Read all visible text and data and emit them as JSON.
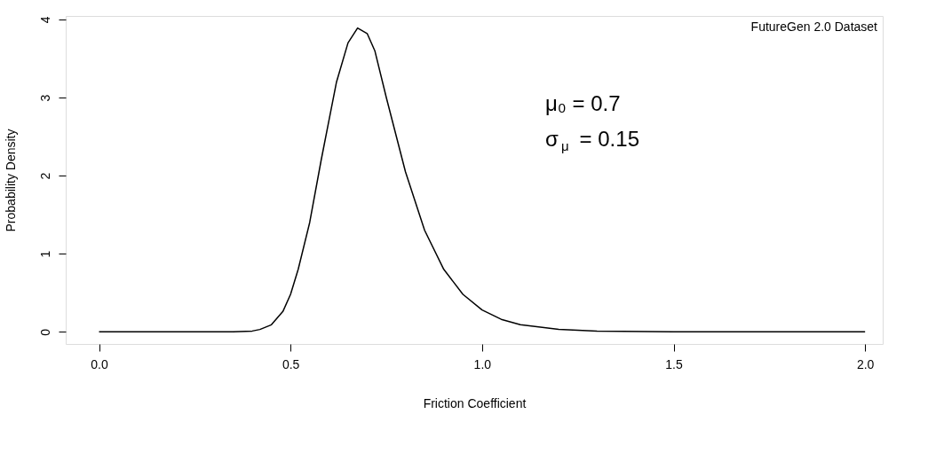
{
  "chart_data": {
    "type": "line",
    "xlabel": "Friction Coefficient",
    "ylabel": "Probability Density",
    "x": [
      0.0,
      0.2,
      0.35,
      0.4,
      0.42,
      0.45,
      0.48,
      0.5,
      0.52,
      0.55,
      0.58,
      0.6,
      0.62,
      0.65,
      0.675,
      0.7,
      0.72,
      0.75,
      0.8,
      0.85,
      0.9,
      0.95,
      1.0,
      1.05,
      1.1,
      1.2,
      1.3,
      1.5,
      2.0
    ],
    "series": [
      {
        "color": "#000000",
        "values": [
          0,
          0,
          0,
          0.01,
          0.03,
          0.09,
          0.26,
          0.48,
          0.8,
          1.4,
          2.2,
          2.7,
          3.2,
          3.7,
          3.89,
          3.82,
          3.6,
          3.0,
          2.05,
          1.3,
          0.8,
          0.48,
          0.28,
          0.16,
          0.09,
          0.03,
          0.01,
          0,
          0
        ]
      }
    ],
    "xlim": [
      -0.087,
      2.046
    ],
    "ylim": [
      -0.156,
      4.045
    ],
    "xticks": [
      {
        "value": 0,
        "label": "0.0"
      },
      0.5,
      {
        "value": 1,
        "label": "1.0"
      },
      1.5,
      {
        "value": 2,
        "label": "2.0"
      }
    ],
    "yticks": [
      0,
      1,
      2,
      3,
      4
    ],
    "marker": "none",
    "line_style": "solid",
    "grid": false,
    "annotations": [
      "FutureGen 2.0 Dataset",
      "μ₀ = 0.7",
      "σ$_{μ}$ = 0.15"
    ]
  }
}
